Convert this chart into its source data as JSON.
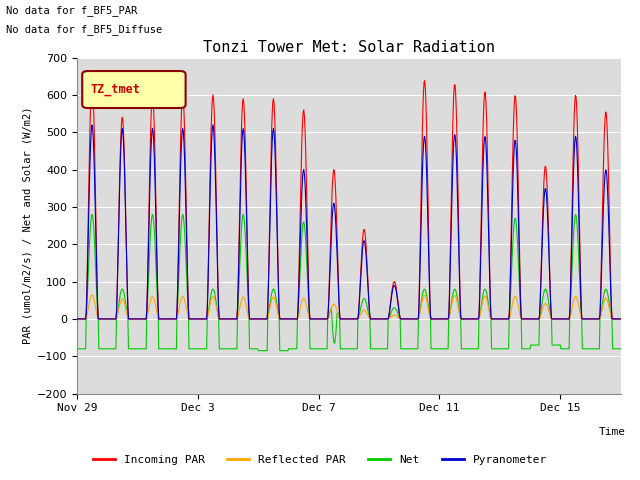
{
  "title": "Tonzi Tower Met: Solar Radiation",
  "ylabel": "PAR (umol/m2/s) / Net and Solar (W/m2)",
  "xlabel": "Time",
  "ylim": [
    -200,
    700
  ],
  "yticks": [
    -200,
    -100,
    0,
    100,
    200,
    300,
    400,
    500,
    600,
    700
  ],
  "xtick_labels": [
    "Nov 29",
    "Dec 3",
    "Dec 7",
    "Dec 11",
    "Dec 15"
  ],
  "top_text1": "No data for f_BF5_PAR",
  "top_text2": "No data for f_BF5_Diffuse",
  "legend_label": "TZ_tmet",
  "colors": {
    "incoming_par": "#FF0000",
    "reflected_par": "#FFA500",
    "net": "#00CC00",
    "pyranometer": "#0000CC"
  },
  "legend_items": [
    "Incoming PAR",
    "Reflected PAR",
    "Net",
    "Pyranometer"
  ],
  "plot_bg_color": "#DCDCDC",
  "n_days": 18,
  "figsize": [
    6.4,
    4.8
  ],
  "dpi": 100
}
